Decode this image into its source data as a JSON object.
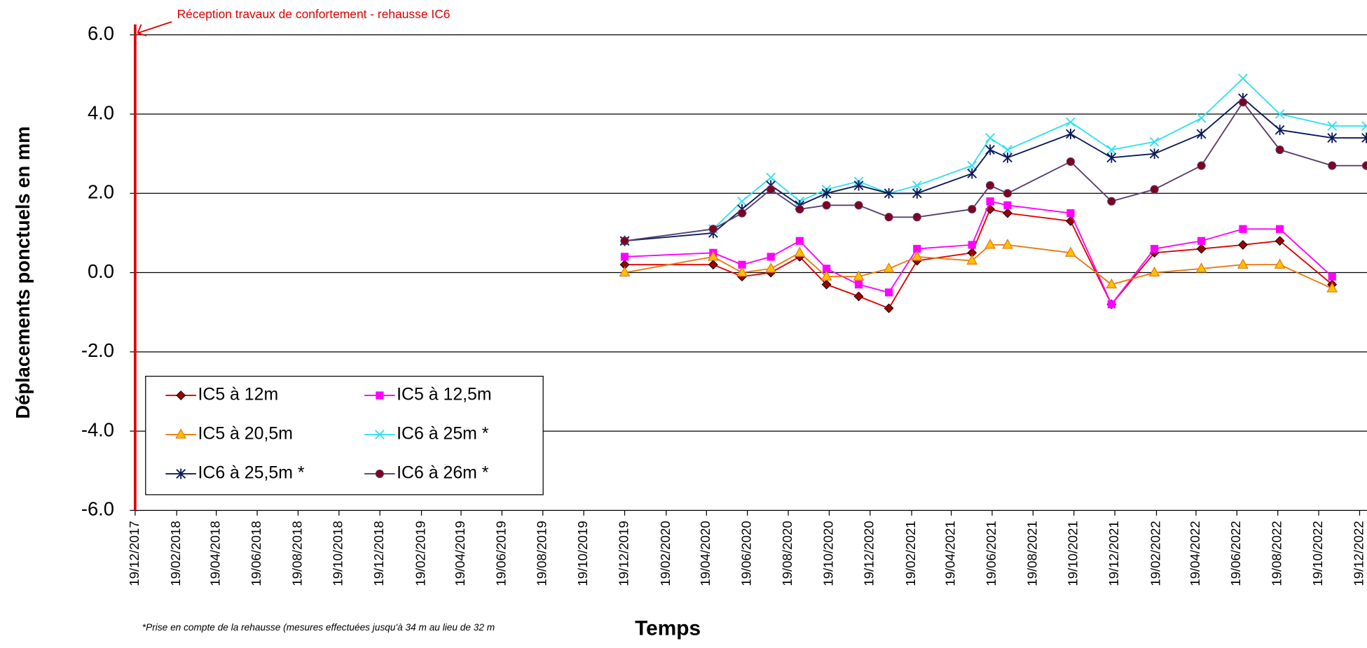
{
  "chart_data": {
    "type": "line",
    "ylabel": "Déplacements ponctuels en mm",
    "xlabel": "Temps",
    "footnote": "*Prise en compte de la rehausse (mesures effectuées jusqu'à 34 m au lieu de 32 m",
    "annotation": {
      "text": "Réception travaux de confortement - rehausse IC6",
      "x": "2017-12-19",
      "color": "#e00000"
    },
    "xlim": [
      "2017-12-19",
      "2022-12-30"
    ],
    "xticks": [
      {
        "value": "2017-12-19",
        "label": "19/12/2017"
      },
      {
        "value": "2018-02-19",
        "label": "19/02/2018"
      },
      {
        "value": "2018-04-19",
        "label": "19/04/2018"
      },
      {
        "value": "2018-06-19",
        "label": "19/06/2018"
      },
      {
        "value": "2018-08-19",
        "label": "19/08/2018"
      },
      {
        "value": "2018-10-19",
        "label": "19/10/2018"
      },
      {
        "value": "2018-12-19",
        "label": "19/12/2018"
      },
      {
        "value": "2019-02-19",
        "label": "19/02/2019"
      },
      {
        "value": "2019-04-19",
        "label": "19/04/2019"
      },
      {
        "value": "2019-06-19",
        "label": "19/06/2019"
      },
      {
        "value": "2019-08-19",
        "label": "19/08/2019"
      },
      {
        "value": "2019-10-19",
        "label": "19/10/2019"
      },
      {
        "value": "2019-12-19",
        "label": "19/12/2019"
      },
      {
        "value": "2020-02-19",
        "label": "19/02/2020"
      },
      {
        "value": "2020-04-19",
        "label": "19/04/2020"
      },
      {
        "value": "2020-06-19",
        "label": "19/06/2020"
      },
      {
        "value": "2020-08-19",
        "label": "19/08/2020"
      },
      {
        "value": "2020-10-19",
        "label": "19/10/2020"
      },
      {
        "value": "2020-12-19",
        "label": "19/12/2020"
      },
      {
        "value": "2021-02-19",
        "label": "19/02/2021"
      },
      {
        "value": "2021-04-19",
        "label": "19/04/2021"
      },
      {
        "value": "2021-06-19",
        "label": "19/06/2021"
      },
      {
        "value": "2021-08-19",
        "label": "19/08/2021"
      },
      {
        "value": "2021-10-19",
        "label": "19/10/2021"
      },
      {
        "value": "2021-12-19",
        "label": "19/12/2021"
      },
      {
        "value": "2022-02-19",
        "label": "19/02/2022"
      },
      {
        "value": "2022-04-19",
        "label": "19/04/2022"
      },
      {
        "value": "2022-06-19",
        "label": "19/06/2022"
      },
      {
        "value": "2022-08-19",
        "label": "19/08/2022"
      },
      {
        "value": "2022-10-19",
        "label": "19/10/2022"
      },
      {
        "value": "2022-12-19",
        "label": "19/12/2022"
      }
    ],
    "ylim": [
      -6,
      6
    ],
    "yticks": [
      {
        "value": -6,
        "label": "-6.0"
      },
      {
        "value": -4,
        "label": "-4.0"
      },
      {
        "value": -2,
        "label": "-2.0"
      },
      {
        "value": 0,
        "label": "0.0"
      },
      {
        "value": 2,
        "label": "2.0"
      },
      {
        "value": 4,
        "label": "4.0"
      },
      {
        "value": 6,
        "label": "6.0"
      }
    ],
    "grid": true,
    "legend": "bottom-left",
    "series": [
      {
        "name": "IC5 à 12m",
        "color": "#e00000",
        "marker": "diamond",
        "marker_fill": "#a00000",
        "x": [
          "2019-12-19",
          "2020-04-29",
          "2020-06-11",
          "2020-07-24",
          "2020-09-05",
          "2020-10-15",
          "2020-12-02",
          "2021-01-16",
          "2021-02-27",
          "2021-05-20",
          "2021-06-16",
          "2021-07-12",
          "2021-10-14",
          "2021-12-14",
          "2022-02-16",
          "2022-04-27",
          "2022-06-28",
          "2022-08-22",
          "2022-11-08"
        ],
        "values": [
          0.2,
          0.2,
          -0.1,
          0.0,
          0.4,
          -0.3,
          -0.6,
          -0.9,
          0.3,
          0.5,
          1.6,
          1.5,
          1.3,
          -0.8,
          0.5,
          0.6,
          0.7,
          0.8,
          -0.3
        ]
      },
      {
        "name": "IC5 à 12,5m",
        "color": "#ff00ff",
        "marker": "square",
        "marker_fill": "#ff00ff",
        "x": [
          "2019-12-19",
          "2020-04-29",
          "2020-06-11",
          "2020-07-24",
          "2020-09-05",
          "2020-10-15",
          "2020-12-02",
          "2021-01-16",
          "2021-02-27",
          "2021-05-20",
          "2021-06-16",
          "2021-07-12",
          "2021-10-14",
          "2021-12-14",
          "2022-02-16",
          "2022-04-27",
          "2022-06-28",
          "2022-08-22",
          "2022-11-08"
        ],
        "values": [
          0.4,
          0.5,
          0.2,
          0.4,
          0.8,
          0.1,
          -0.3,
          -0.5,
          0.6,
          0.7,
          1.8,
          1.7,
          1.5,
          -0.8,
          0.6,
          0.8,
          1.1,
          1.1,
          -0.1
        ]
      },
      {
        "name": "IC5 à 20,5m",
        "color": "#e87a10",
        "marker": "triangle",
        "marker_fill": "#ffc000",
        "x": [
          "2019-12-19",
          "2020-04-29",
          "2020-06-11",
          "2020-07-24",
          "2020-09-05",
          "2020-10-15",
          "2020-12-02",
          "2021-01-16",
          "2021-02-27",
          "2021-05-20",
          "2021-06-16",
          "2021-07-12",
          "2021-10-14",
          "2021-12-14",
          "2022-02-16",
          "2022-04-27",
          "2022-06-28",
          "2022-08-22",
          "2022-11-08"
        ],
        "values": [
          0.0,
          0.4,
          0.0,
          0.1,
          0.5,
          -0.1,
          -0.1,
          0.1,
          0.4,
          0.3,
          0.7,
          0.7,
          0.5,
          -0.3,
          0.0,
          0.1,
          0.2,
          0.2,
          -0.4
        ]
      },
      {
        "name": "IC6 à 25m *",
        "color": "#33e0f0",
        "marker": "x",
        "marker_fill": "#33e0f0",
        "x": [
          "2019-12-19",
          "2020-04-29",
          "2020-06-11",
          "2020-07-24",
          "2020-09-05",
          "2020-10-15",
          "2020-12-02",
          "2021-01-16",
          "2021-02-27",
          "2021-05-20",
          "2021-06-16",
          "2021-07-12",
          "2021-10-14",
          "2021-12-14",
          "2022-02-16",
          "2022-04-27",
          "2022-06-28",
          "2022-08-22",
          "2022-11-08",
          "2022-12-29"
        ],
        "values": [
          0.8,
          1.1,
          1.8,
          2.4,
          1.8,
          2.1,
          2.3,
          2.0,
          2.2,
          2.7,
          3.4,
          3.1,
          3.8,
          3.1,
          3.3,
          3.9,
          4.9,
          4.0,
          3.7,
          3.7
        ]
      },
      {
        "name": "IC6 à 25,5m *",
        "color": "#0b1a5a",
        "marker": "star",
        "marker_fill": "#0b1a5a",
        "x": [
          "2019-12-19",
          "2020-04-29",
          "2020-06-11",
          "2020-07-24",
          "2020-09-05",
          "2020-10-15",
          "2020-12-02",
          "2021-01-16",
          "2021-02-27",
          "2021-05-20",
          "2021-06-16",
          "2021-07-12",
          "2021-10-14",
          "2021-12-14",
          "2022-02-16",
          "2022-04-27",
          "2022-06-28",
          "2022-08-22",
          "2022-11-08",
          "2022-12-29"
        ],
        "values": [
          0.8,
          1.0,
          1.6,
          2.2,
          1.7,
          2.0,
          2.2,
          2.0,
          2.0,
          2.5,
          3.1,
          2.9,
          3.5,
          2.9,
          3.0,
          3.5,
          4.4,
          3.6,
          3.4,
          3.4
        ]
      },
      {
        "name": "IC6 à 26m *",
        "color": "#5a3d6e",
        "marker": "circle",
        "marker_fill": "#800020",
        "x": [
          "2019-12-19",
          "2020-04-29",
          "2020-06-11",
          "2020-07-24",
          "2020-09-05",
          "2020-10-15",
          "2020-12-02",
          "2021-01-16",
          "2021-02-27",
          "2021-05-20",
          "2021-06-16",
          "2021-07-12",
          "2021-10-14",
          "2021-12-14",
          "2022-02-16",
          "2022-04-27",
          "2022-06-28",
          "2022-08-22",
          "2022-11-08",
          "2022-12-29"
        ],
        "values": [
          0.8,
          1.1,
          1.5,
          2.1,
          1.6,
          1.7,
          1.7,
          1.4,
          1.4,
          1.6,
          2.2,
          2.0,
          2.8,
          1.8,
          2.1,
          2.7,
          4.3,
          3.1,
          2.7,
          2.7
        ]
      }
    ]
  }
}
